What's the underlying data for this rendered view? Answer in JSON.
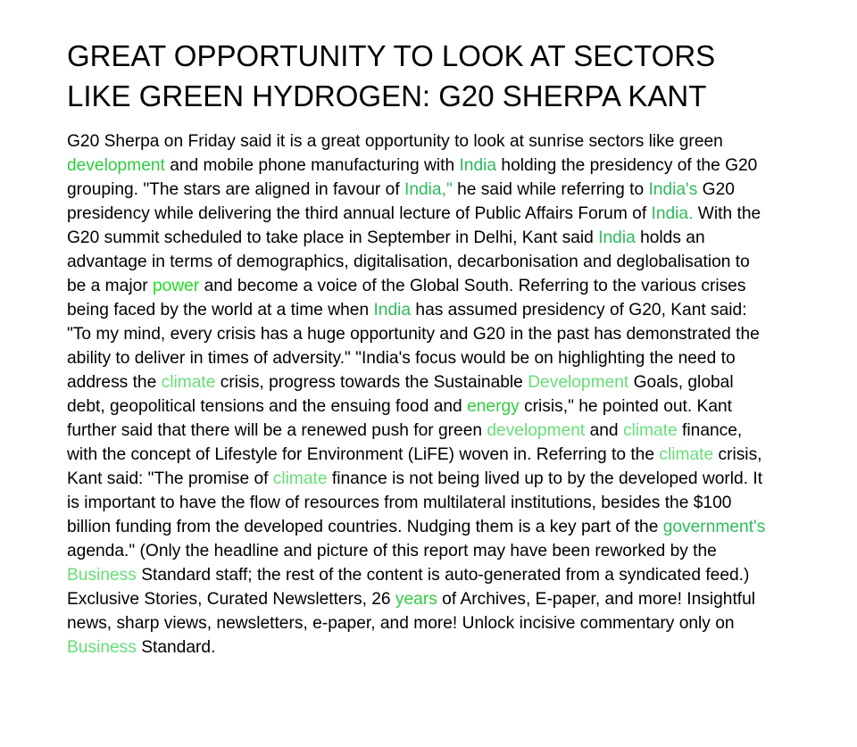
{
  "article": {
    "headline": "GREAT OPPORTUNITY TO LOOK AT SECTORS LIKE GREEN HYDROGEN: G20 SHERPA KANT",
    "paragraph_segments": [
      {
        "text": "G20 Sherpa on Friday said it is a great opportunity to look at sunrise sectors like green "
      },
      {
        "text": "development",
        "link": true,
        "color": "#2ecc40"
      },
      {
        "text": " and mobile phone manufacturing with "
      },
      {
        "text": "India",
        "link": true,
        "color": "#2dbb5a"
      },
      {
        "text": " holding the presidency of the G20 grouping. \"The stars are aligned in favour of "
      },
      {
        "text": "India,\"",
        "link": true,
        "color": "#2dbb5a"
      },
      {
        "text": " he said while referring to "
      },
      {
        "text": "India's",
        "link": true,
        "color": "#2dbb5a"
      },
      {
        "text": " G20 presidency while delivering the third annual lecture of Public Affairs Forum of "
      },
      {
        "text": "India.",
        "link": true,
        "color": "#2dbb5a"
      },
      {
        "text": " With the G20 summit scheduled to take place in September in Delhi, Kant said "
      },
      {
        "text": "India",
        "link": true,
        "color": "#2dbb5a"
      },
      {
        "text": " holds an advantage in terms of demographics, digitalisation, decarbonisation and deglobalisation to be a major "
      },
      {
        "text": "power",
        "link": true,
        "color": "#22dd22"
      },
      {
        "text": " and become a voice of the Global South. Referring to the various crises being faced by the world at a time when "
      },
      {
        "text": "India",
        "link": true,
        "color": "#2dbb5a"
      },
      {
        "text": " has assumed presidency of G20, Kant said: \"To my mind, every crisis has a huge opportunity and G20 in the past has demonstrated the ability to deliver in times of adversity.\" \"India's focus would be on highlighting the need to address the "
      },
      {
        "text": "climate",
        "link": true,
        "color": "#66dd77"
      },
      {
        "text": " crisis, progress towards the Sustainable "
      },
      {
        "text": "Development",
        "link": true,
        "color": "#66dd77"
      },
      {
        "text": " Goals, global debt, geopolitical tensions and the ensuing food and "
      },
      {
        "text": "energy",
        "link": true,
        "color": "#33cc44"
      },
      {
        "text": " crisis,\" he pointed out. Kant further said that there will be a renewed push for green "
      },
      {
        "text": "development",
        "link": true,
        "color": "#66dd77"
      },
      {
        "text": " and "
      },
      {
        "text": "climate",
        "link": true,
        "color": "#66dd77"
      },
      {
        "text": " finance, with the concept of Lifestyle for Environment (LiFE) woven in. Referring to the "
      },
      {
        "text": "climate",
        "link": true,
        "color": "#66dd77"
      },
      {
        "text": " crisis, Kant said: \"The promise of "
      },
      {
        "text": "climate",
        "link": true,
        "color": "#66dd77"
      },
      {
        "text": " finance is not being lived up to by the developed world. It is important to have the flow of resources from multilateral institutions, besides the $100 billion funding from the developed countries. Nudging them is a key part of the "
      },
      {
        "text": "government's",
        "link": true,
        "color": "#2dbb5a"
      },
      {
        "text": " agenda.\" (Only the headline and picture of this report may have been reworked by the "
      },
      {
        "text": "Business",
        "link": true,
        "color": "#66dd77"
      },
      {
        "text": " Standard staff; the rest of the content is auto-generated from a syndicated feed.) Exclusive Stories, Curated Newsletters, 26 "
      },
      {
        "text": "years",
        "link": true,
        "color": "#33cc44"
      },
      {
        "text": " of Archives, E-paper, and more! Insightful news, sharp views, newsletters, e-paper, and more! Unlock incisive commentary only on "
      },
      {
        "text": "Business",
        "link": true,
        "color": "#66dd77"
      },
      {
        "text": " Standard."
      }
    ]
  }
}
